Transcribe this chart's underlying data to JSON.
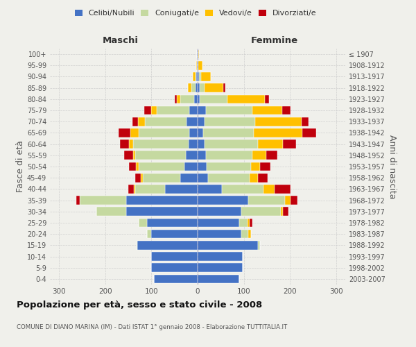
{
  "age_groups": [
    "0-4",
    "5-9",
    "10-14",
    "15-19",
    "20-24",
    "25-29",
    "30-34",
    "35-39",
    "40-44",
    "45-49",
    "50-54",
    "55-59",
    "60-64",
    "65-69",
    "70-74",
    "75-79",
    "80-84",
    "85-89",
    "90-94",
    "95-99",
    "100+"
  ],
  "birth_years": [
    "2003-2007",
    "1998-2002",
    "1993-1997",
    "1988-1992",
    "1983-1987",
    "1978-1982",
    "1973-1977",
    "1968-1972",
    "1963-1967",
    "1958-1962",
    "1953-1957",
    "1948-1952",
    "1943-1947",
    "1938-1942",
    "1933-1937",
    "1928-1932",
    "1923-1927",
    "1918-1922",
    "1913-1917",
    "1908-1912",
    "≤ 1907"
  ],
  "males": {
    "celibe": [
      95,
      100,
      100,
      130,
      100,
      110,
      155,
      155,
      70,
      38,
      28,
      25,
      20,
      18,
      24,
      18,
      8,
      5,
      3,
      1,
      1
    ],
    "coniugato": [
      0,
      0,
      0,
      2,
      10,
      18,
      65,
      100,
      65,
      80,
      100,
      110,
      120,
      110,
      90,
      70,
      30,
      8,
      2,
      0,
      0
    ],
    "vedovo": [
      0,
      0,
      0,
      0,
      0,
      0,
      0,
      0,
      3,
      5,
      5,
      5,
      8,
      18,
      15,
      12,
      7,
      8,
      5,
      2,
      1
    ],
    "divorziato": [
      0,
      0,
      0,
      0,
      0,
      0,
      0,
      8,
      12,
      12,
      15,
      20,
      20,
      25,
      12,
      15,
      5,
      0,
      0,
      0,
      0
    ]
  },
  "females": {
    "nubile": [
      90,
      98,
      98,
      130,
      95,
      90,
      95,
      110,
      52,
      22,
      20,
      18,
      15,
      12,
      15,
      18,
      5,
      5,
      3,
      2,
      1
    ],
    "coniugata": [
      0,
      0,
      0,
      5,
      15,
      18,
      85,
      80,
      90,
      90,
      95,
      100,
      115,
      110,
      110,
      100,
      60,
      10,
      5,
      0,
      0
    ],
    "vedova": [
      0,
      0,
      0,
      0,
      5,
      5,
      5,
      12,
      25,
      18,
      20,
      30,
      55,
      105,
      100,
      65,
      80,
      40,
      20,
      8,
      2
    ],
    "divorziata": [
      0,
      0,
      0,
      0,
      0,
      5,
      12,
      15,
      35,
      22,
      22,
      25,
      28,
      30,
      15,
      18,
      10,
      5,
      0,
      0,
      0
    ]
  },
  "colors": {
    "celibe": "#4472c4",
    "coniugato": "#c5d9a0",
    "vedovo": "#ffc000",
    "divorziato": "#c0000c"
  },
  "xlim": 320,
  "title": "Popolazione per età, sesso e stato civile - 2008",
  "subtitle": "COMUNE DI DIANO MARINA (IM) - Dati ISTAT 1° gennaio 2008 - Elaborazione TUTTITALIA.IT",
  "ylabel_left": "Fasce di età",
  "ylabel_right": "Anni di nascita",
  "xlabel_left": "Maschi",
  "xlabel_right": "Femmine",
  "bg_color": "#f0f0eb",
  "grid_color": "#cccccc"
}
